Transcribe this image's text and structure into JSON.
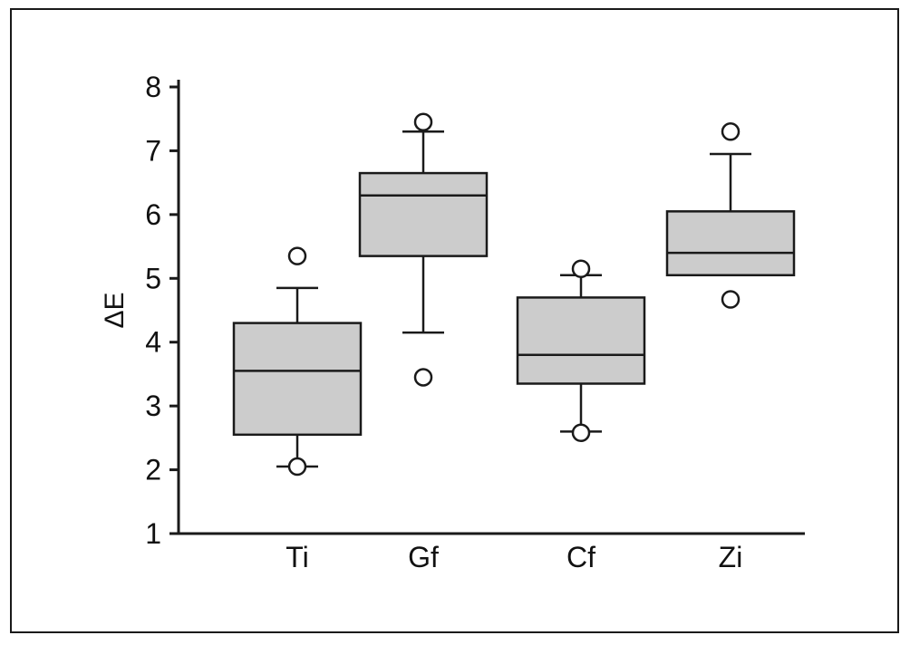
{
  "chart_data": {
    "type": "boxplot",
    "title": "",
    "xlabel": "",
    "ylabel": "ΔE",
    "ylim": [
      1,
      8
    ],
    "yticks": [
      1,
      2,
      3,
      4,
      5,
      6,
      7,
      8
    ],
    "grid": false,
    "legend": false,
    "categories": [
      "Ti",
      "Gf",
      "Cf",
      "Zi"
    ],
    "series": [
      {
        "name": "Ti",
        "whisker_low": 2.05,
        "q1": 2.55,
        "median": 3.55,
        "q3": 4.3,
        "whisker_high": 4.85,
        "outliers": [
          5.35,
          2.05
        ]
      },
      {
        "name": "Gf",
        "whisker_low": 4.15,
        "q1": 5.35,
        "median": 6.3,
        "q3": 6.65,
        "whisker_high": 7.3,
        "outliers": [
          7.45,
          3.45
        ]
      },
      {
        "name": "Cf",
        "whisker_low": 2.6,
        "q1": 3.35,
        "median": 3.8,
        "q3": 4.7,
        "whisker_high": 5.05,
        "outliers": [
          5.15,
          2.58
        ]
      },
      {
        "name": "Zi",
        "whisker_low": 5.05,
        "q1": 5.05,
        "median": 5.4,
        "q3": 6.05,
        "whisker_high": 6.95,
        "outliers": [
          7.3,
          4.67
        ]
      }
    ],
    "colors": {
      "box_fill": "#cccccc",
      "line": "#1a1a1a",
      "outlier_fill": "#ffffff",
      "background": "#ffffff"
    }
  }
}
